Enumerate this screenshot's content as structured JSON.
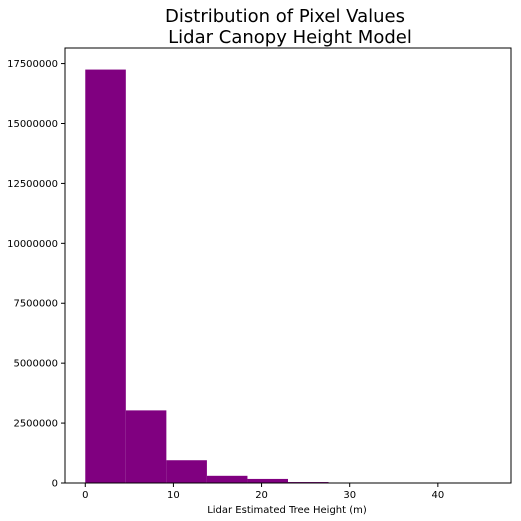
{
  "chart_data": {
    "type": "bar",
    "title_line1": "Distribution of Pixel Values",
    "title_line2": "Lidar Canopy Height Model",
    "xlabel": "Lidar Estimated Tree Height (m)",
    "ylabel": "",
    "xlim": [
      -2.3,
      48.3
    ],
    "ylim": [
      0,
      18150000
    ],
    "xticks": [
      0,
      10,
      20,
      30,
      40
    ],
    "yticks": [
      0,
      2500000,
      5000000,
      7500000,
      10000000,
      12500000,
      15000000,
      17500000
    ],
    "bins": [
      {
        "x0": 0.0,
        "x1": 4.6,
        "value": 17250000
      },
      {
        "x0": 4.6,
        "x1": 9.2,
        "value": 3030000
      },
      {
        "x0": 9.2,
        "x1": 13.8,
        "value": 950000
      },
      {
        "x0": 13.8,
        "x1": 18.4,
        "value": 300000
      },
      {
        "x0": 18.4,
        "x1": 23.0,
        "value": 170000
      },
      {
        "x0": 23.0,
        "x1": 27.6,
        "value": 40000
      },
      {
        "x0": 27.6,
        "x1": 32.2,
        "value": 8000
      },
      {
        "x0": 32.2,
        "x1": 36.8,
        "value": 2000
      },
      {
        "x0": 36.8,
        "x1": 41.4,
        "value": 500
      },
      {
        "x0": 41.4,
        "x1": 46.0,
        "value": 100
      }
    ],
    "bar_color": "#800080",
    "grid": false,
    "legend": "none"
  }
}
